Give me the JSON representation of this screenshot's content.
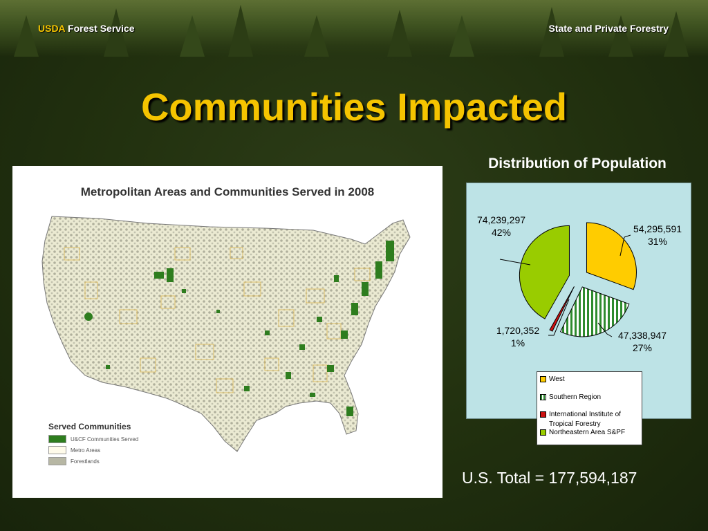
{
  "header": {
    "agency_prefix": "USDA",
    "agency_name": "Forest Service",
    "program": "State and Private Forestry"
  },
  "slide_title": "Communities Impacted",
  "map": {
    "title": "Metropolitan Areas and Communities Served in 2008",
    "legend_title": "Served Communities",
    "legend_items": [
      {
        "label": "U&CF Communities Served",
        "color": "#2e7d1e"
      },
      {
        "label": "Metro Areas",
        "color": "#fffbea"
      },
      {
        "label": "Forestlands",
        "color": "#b7b7a4"
      }
    ]
  },
  "chart_data": {
    "type": "pie",
    "title": "Distribution of Population",
    "slices": [
      {
        "name": "West",
        "value": 54295591,
        "percent": 31,
        "value_label": "54,295,591",
        "percent_label": "31%",
        "color": "#ffcc00",
        "pattern": "solid"
      },
      {
        "name": "Southern Region",
        "value": 47338947,
        "percent": 27,
        "value_label": "47,338,947",
        "percent_label": "27%",
        "color": "#2e8b2e",
        "pattern": "vertical-stripes"
      },
      {
        "name": "International Institute of Tropical Forestry",
        "value": 1720352,
        "percent": 1,
        "value_label": "1,720,352",
        "percent_label": "1%",
        "color": "#cc1111",
        "pattern": "solid"
      },
      {
        "name": "Northeastern Area S&PF",
        "value": 74239297,
        "percent": 42,
        "value_label": "74,239,297",
        "percent_label": "42%",
        "color": "#99cc00",
        "pattern": "solid"
      }
    ],
    "exploded": true,
    "legend_position": "bottom"
  },
  "total_text": "U.S. Total = 177,594,187",
  "colors": {
    "title_yellow": "#f5c400",
    "background_green": "#22310f",
    "pie_panel": "#bde3e6"
  }
}
